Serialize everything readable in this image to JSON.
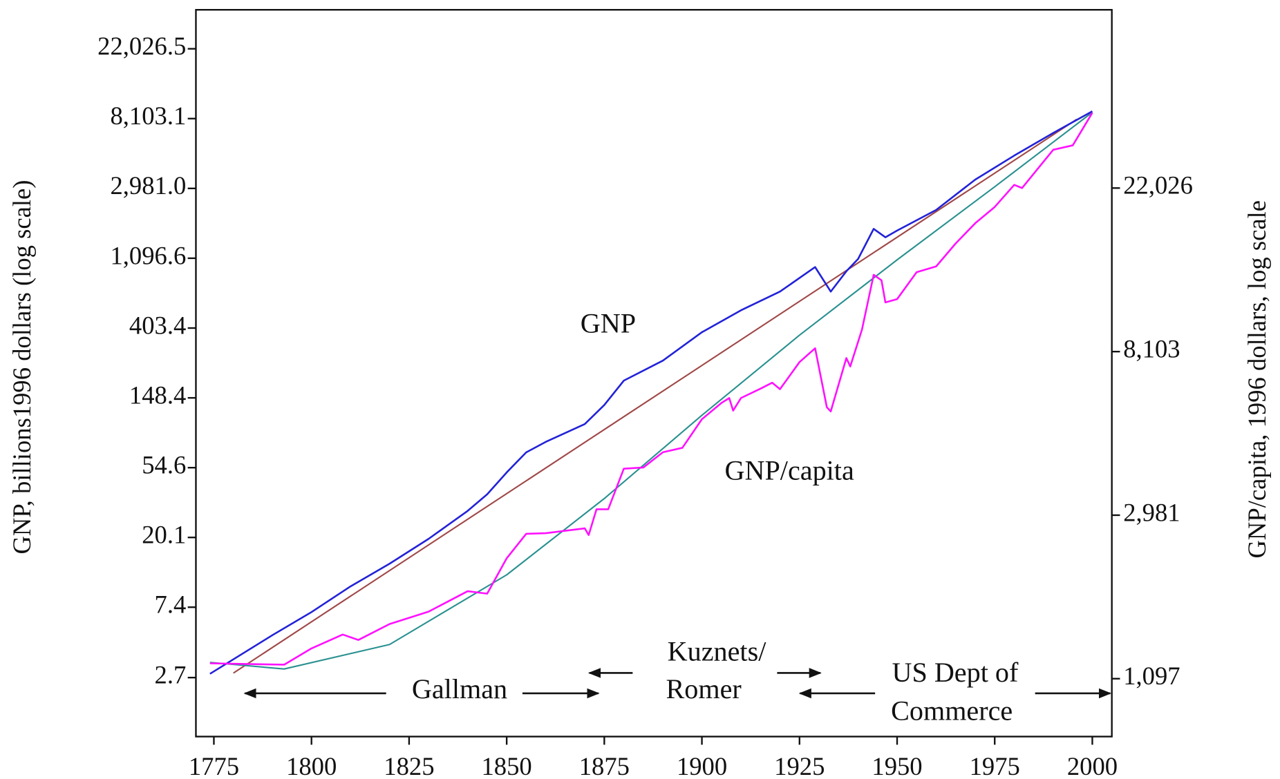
{
  "chart_data": {
    "type": "line",
    "y_label": "GNP, billions1996 dollars (log scale)",
    "y2_label": "GNP/capita, 1996 dollars, log scale",
    "log_y": true,
    "log_y2": true,
    "xlim": [
      1770.4,
      2005
    ],
    "xticks": [
      1775,
      1800,
      1825,
      1850,
      1875,
      1900,
      1925,
      1950,
      1975,
      2000
    ],
    "ylim": [
      1.16,
      38500
    ],
    "yticks": [
      2.7,
      7.4,
      20.1,
      54.6,
      148.4,
      403.4,
      {
        "value": 1096.6,
        "label": "1,096.6"
      },
      {
        "value": 2981.0,
        "label": "2,981.0"
      },
      {
        "value": 8103.1,
        "label": "8,103.1"
      },
      {
        "value": 22026.5,
        "label": "22,026.5"
      }
    ],
    "y2lim": [
      770,
      65500
    ],
    "y2ticks": [
      {
        "value": 1097,
        "label": "1,097"
      },
      {
        "value": 2981,
        "label": "2,981"
      },
      {
        "value": 8103,
        "label": "8,103"
      },
      {
        "value": 22026,
        "label": "22,026"
      }
    ],
    "series": [
      {
        "name": "GNP",
        "color": "#2222d8",
        "x": [
          1774,
          1790,
          1800,
          1810,
          1820,
          1830,
          1840,
          1845,
          1850,
          1855,
          1860,
          1870,
          1875,
          1880,
          1890,
          1900,
          1910,
          1920,
          1929,
          1933,
          1937,
          1940,
          1944,
          1947,
          1950,
          1960,
          1970,
          1980,
          1990,
          2000
        ],
        "values": [
          2.85,
          4.96,
          6.9,
          9.97,
          13.8,
          19.7,
          29.4,
          37.3,
          51,
          68,
          79,
          102,
          134,
          190,
          253,
          380,
          520,
          680,
          966,
          680,
          910,
          1085,
          1670,
          1480,
          1630,
          2190,
          3380,
          4770,
          6600,
          9000
        ]
      },
      {
        "name": "GNP/capita",
        "color": "#ff10ff",
        "axis": "y2",
        "x": [
          1774,
          1793,
          1800,
          1808,
          1812,
          1820,
          1830,
          1840,
          1845,
          1850,
          1855,
          1860,
          1870,
          1871,
          1873,
          1876,
          1880,
          1885,
          1890,
          1895,
          1900,
          1905,
          1907,
          1908,
          1910,
          1915,
          1918,
          1920,
          1925,
          1929,
          1932,
          1933,
          1937,
          1938,
          1941,
          1944,
          1946,
          1947,
          1950,
          1955,
          1960,
          1965,
          1970,
          1975,
          1980,
          1982,
          1990,
          1995,
          2000
        ],
        "values": [
          1205,
          1195,
          1320,
          1437,
          1390,
          1532,
          1653,
          1873,
          1845,
          2290,
          2660,
          2670,
          2750,
          2640,
          3090,
          3090,
          3960,
          3990,
          4380,
          4500,
          5360,
          5920,
          6100,
          5650,
          6100,
          6460,
          6700,
          6440,
          7600,
          8270,
          5770,
          5620,
          7790,
          7400,
          9270,
          12960,
          12530,
          10950,
          11170,
          13170,
          13640,
          15700,
          17760,
          19620,
          22460,
          22030,
          27840,
          28600,
          34900
        ]
      }
    ],
    "trend_lines": [
      {
        "color": "#a04848",
        "x": [
          1780,
          1996
        ],
        "values": [
          2.88,
          8020
        ]
      },
      {
        "color": "#2a9090",
        "axis": "y2",
        "x": [
          1774,
          1793,
          1820,
          1850,
          1875,
          1900,
          1925,
          1950,
          1975,
          2000
        ],
        "values": [
          1212,
          1164,
          1352,
          2070,
          3300,
          5490,
          8960,
          14200,
          22200,
          35000
        ]
      }
    ],
    "annotations": [
      "GNP",
      "GNP/capita",
      "Gallman",
      "Kuznets/",
      "Romer",
      "US Dept of",
      "Commerce"
    ]
  }
}
